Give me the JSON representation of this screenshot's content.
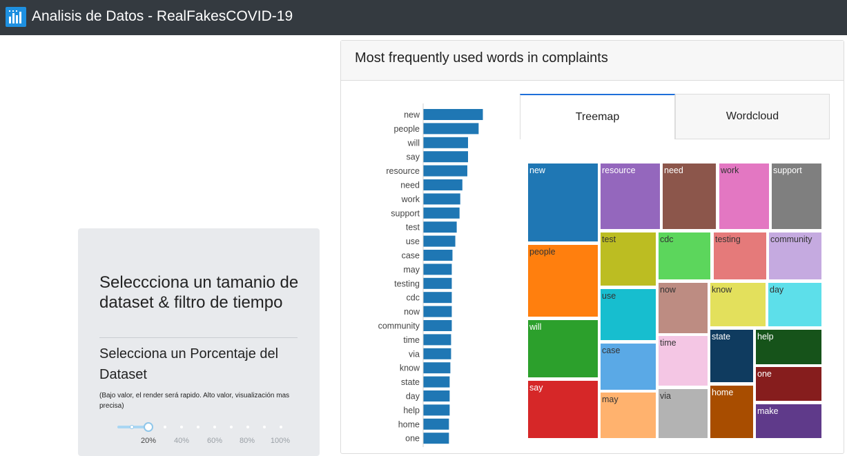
{
  "app": {
    "title": "Analisis de Datos - RealFakesCOVID-19",
    "logo_icon": "bar-chart-logo-icon",
    "logo_color": "#1e90e0"
  },
  "sidebar": {
    "heading": "Seleccciona un tamanio de dataset & filtro de tiempo",
    "subheading": "Selecciona un Porcentaje del Dataset",
    "note": "(Bajo valor, el render será rapido. Alto valor, visualización mas precisa)",
    "slider": {
      "value_percent": 20,
      "labels": [
        "20%",
        "40%",
        "60%",
        "80%",
        "100%"
      ]
    }
  },
  "panel": {
    "title": "Most frequently used words in complaints",
    "tabs": [
      {
        "label": "Treemap",
        "active": true
      },
      {
        "label": "Wordcloud",
        "active": false
      }
    ]
  },
  "chart_data": [
    {
      "type": "bar",
      "orientation": "horizontal",
      "bar_color": "#1f77b4",
      "categories": [
        "new",
        "people",
        "will",
        "say",
        "resource",
        "need",
        "work",
        "support",
        "test",
        "use",
        "case",
        "may",
        "testing",
        "cdc",
        "now",
        "community",
        "time",
        "via",
        "know",
        "state",
        "day",
        "help",
        "home",
        "one"
      ],
      "values": [
        84,
        78,
        63,
        63,
        62,
        55,
        52,
        51,
        47,
        45,
        41,
        40,
        40,
        40,
        40,
        40,
        39,
        39,
        38,
        37,
        37,
        37,
        36,
        36
      ]
    },
    {
      "type": "treemap",
      "tiles": [
        {
          "label": "new",
          "color": "#1f77b4",
          "text_color": "#ffffff"
        },
        {
          "label": "people",
          "color": "#ff7f0e",
          "text_color": "#333333"
        },
        {
          "label": "will",
          "color": "#2ca02c",
          "text_color": "#ffffff"
        },
        {
          "label": "say",
          "color": "#d62728",
          "text_color": "#ffffff"
        },
        {
          "label": "resource",
          "color": "#9467bd",
          "text_color": "#ffffff"
        },
        {
          "label": "need",
          "color": "#8c564b",
          "text_color": "#ffffff"
        },
        {
          "label": "work",
          "color": "#e377c2",
          "text_color": "#333333"
        },
        {
          "label": "support",
          "color": "#7f7f7f",
          "text_color": "#ffffff"
        },
        {
          "label": "test",
          "color": "#bcbd22",
          "text_color": "#333333"
        },
        {
          "label": "use",
          "color": "#17becf",
          "text_color": "#333333"
        },
        {
          "label": "case",
          "color": "#5aa9e6",
          "text_color": "#333333"
        },
        {
          "label": "may",
          "color": "#ffb26e",
          "text_color": "#333333"
        },
        {
          "label": "cdc",
          "color": "#5cd65c",
          "text_color": "#333333"
        },
        {
          "label": "testing",
          "color": "#e57a7a",
          "text_color": "#333333"
        },
        {
          "label": "community",
          "color": "#c5aae0",
          "text_color": "#333333"
        },
        {
          "label": "now",
          "color": "#bd8c82",
          "text_color": "#333333"
        },
        {
          "label": "know",
          "color": "#e3e05c",
          "text_color": "#333333"
        },
        {
          "label": "day",
          "color": "#5ddfea",
          "text_color": "#333333"
        },
        {
          "label": "time",
          "color": "#f4c6e4",
          "text_color": "#333333"
        },
        {
          "label": "state",
          "color": "#0f3b5f",
          "text_color": "#ffffff"
        },
        {
          "label": "help",
          "color": "#16531a",
          "text_color": "#ffffff"
        },
        {
          "label": "one",
          "color": "#861d1d",
          "text_color": "#ffffff"
        },
        {
          "label": "via",
          "color": "#b3b3b3",
          "text_color": "#333333"
        },
        {
          "label": "home",
          "color": "#a84d00",
          "text_color": "#ffffff"
        },
        {
          "label": "make",
          "color": "#5f3a8a",
          "text_color": "#ffffff"
        }
      ]
    }
  ]
}
